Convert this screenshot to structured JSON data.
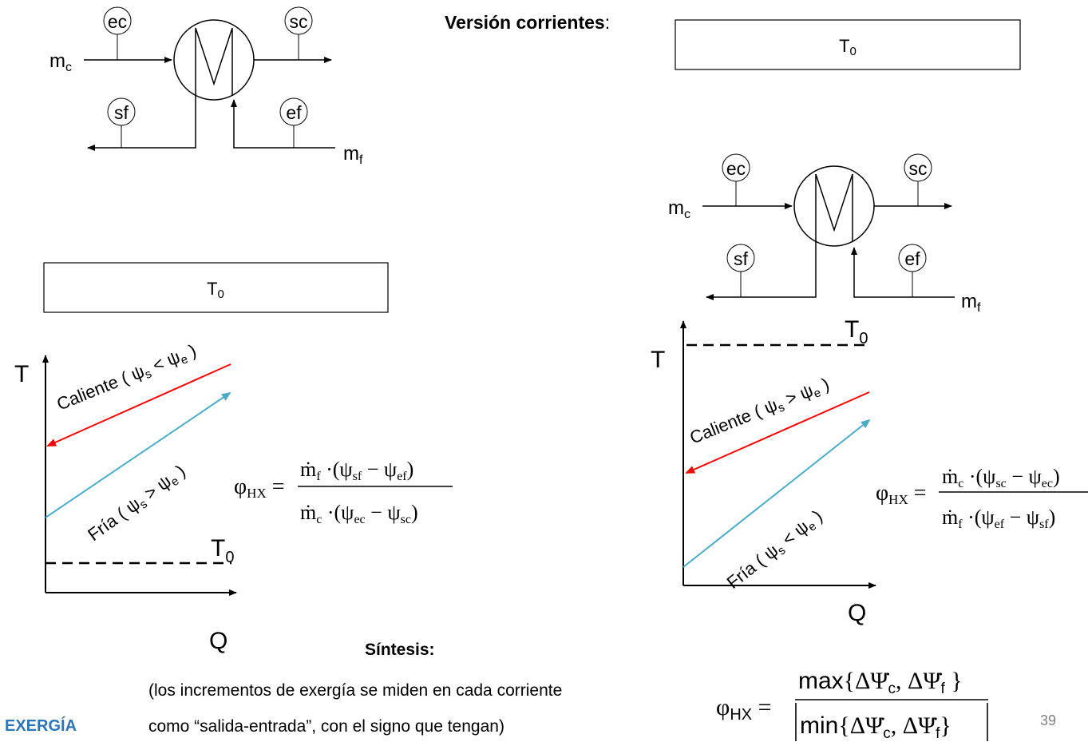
{
  "header": {
    "title_bold": "Versión corrientes",
    "title_colon": ":"
  },
  "boxes": {
    "t0_label": "T",
    "t0_sub": "0"
  },
  "hx_diagram": {
    "hot_inlet": "ec",
    "hot_outlet": "sc",
    "cold_outlet": "sf",
    "cold_inlet": "ef",
    "hot_flow_main": "m",
    "hot_flow_sub": "c",
    "cold_flow_main": "m",
    "cold_flow_sub": "f"
  },
  "left_chart": {
    "y_axis": "T",
    "x_axis": "Q",
    "t0_main": "T",
    "t0_sub": "0",
    "hot_label": "Caliente ( ψ",
    "hot_cmp": "s",
    "hot_rel": " < ψ",
    "hot_end": "e",
    "cold_label": "Fría ( ψ",
    "cold_cmp": "s",
    "cold_rel": " > ψ",
    "cold_end": "e",
    "formula_lhs": "φ",
    "formula_lhs_sub": "HX",
    "num_m": "ṁ",
    "num_m_sub": "f",
    "num_a": "ψ",
    "num_a_sub": "sf",
    "num_b": "ψ",
    "num_b_sub": "ef",
    "den_m": "ṁ",
    "den_m_sub": "c",
    "den_a": "ψ",
    "den_a_sub": "ec",
    "den_b": "ψ",
    "den_b_sub": "sc"
  },
  "right_chart": {
    "y_axis": "T",
    "x_axis": "Q",
    "t0_main": "T",
    "t0_sub": "0",
    "hot_label": "Caliente ( ψ",
    "hot_cmp": "s",
    "hot_rel": " > ψ",
    "hot_end": "e",
    "cold_label": "Fría ( ψ",
    "cold_cmp": "s",
    "cold_rel": " < ψ",
    "cold_end": "e",
    "formula_lhs": "φ",
    "formula_lhs_sub": "HX",
    "num_m": "ṁ",
    "num_m_sub": "c",
    "num_a": "ψ",
    "num_a_sub": "sc",
    "num_b": "ψ",
    "num_b_sub": "ec",
    "den_m": "ṁ",
    "den_m_sub": "f",
    "den_a": "ψ",
    "den_a_sub": "ef",
    "den_b": "ψ",
    "den_b_sub": "sf"
  },
  "synthesis": {
    "title": "Síntesis:",
    "line1": "(los incrementos de exergía se miden en cada corriente",
    "line2": "como “salida-entrada”, con el signo que tengan)",
    "lhs": "φ",
    "lhs_sub": "HX",
    "num_func": "max",
    "den_func": "min",
    "delta_psi": "ΔΨ̇",
    "sub_c": "c",
    "sub_f": "f"
  },
  "footer": {
    "brand": "EXERGÍA",
    "page": "39"
  },
  "colors": {
    "hot": "#ff0000",
    "cold": "#4bacc6",
    "brand": "#2e75b6"
  }
}
